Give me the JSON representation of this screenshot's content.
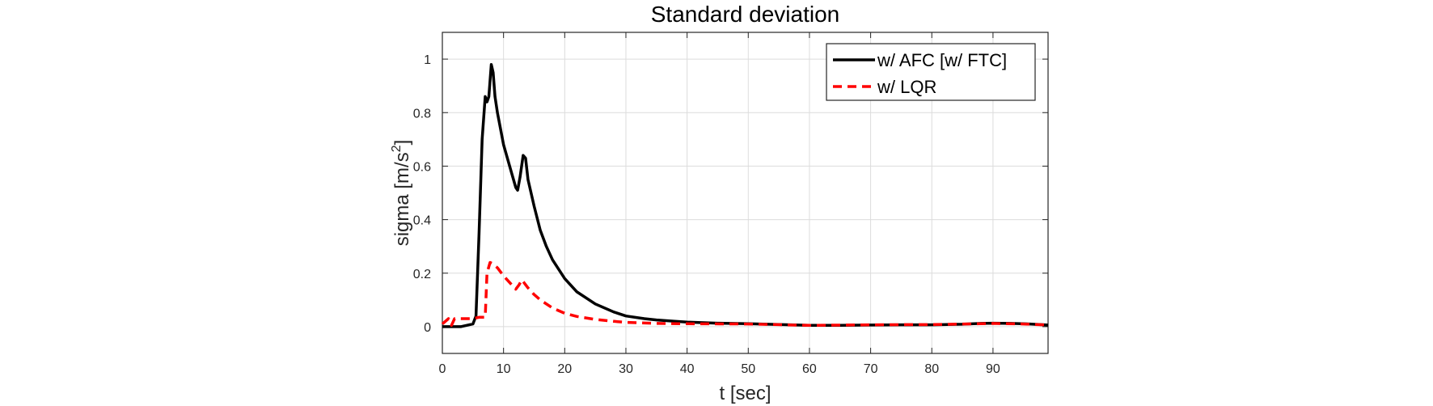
{
  "chart_data": {
    "type": "line",
    "title": "Standard deviation",
    "xlabel": "t [sec]",
    "ylabel_main": "sigma [m/s",
    "ylabel_sup": "2",
    "ylabel_close": "]",
    "xlim": [
      0,
      99
    ],
    "ylim": [
      -0.1,
      1.1
    ],
    "xticks": [
      0,
      10,
      20,
      30,
      40,
      50,
      60,
      70,
      80,
      90
    ],
    "yticks": [
      0,
      0.2,
      0.4,
      0.6,
      0.8,
      1
    ],
    "xtick_labels": [
      "0",
      "10",
      "20",
      "30",
      "40",
      "50",
      "60",
      "70",
      "80",
      "90"
    ],
    "ytick_labels": [
      "0",
      "0.2",
      "0.4",
      "0.6",
      "0.8",
      "1"
    ],
    "grid": true,
    "legend_position": "top-right",
    "series": [
      {
        "name": "w/ AFC [w/ FTC]",
        "color": "#000000",
        "style": "solid",
        "x": [
          0,
          3,
          5,
          5.5,
          6,
          6.5,
          7,
          7.3,
          7.6,
          8,
          8.3,
          8.6,
          9,
          10,
          11,
          12,
          12.3,
          12.7,
          13.2,
          13.6,
          14,
          15,
          16,
          17,
          18,
          20,
          22,
          25,
          28,
          30,
          33,
          35,
          38,
          40,
          45,
          50,
          55,
          60,
          65,
          70,
          75,
          80,
          85,
          88,
          90,
          93,
          96,
          99
        ],
        "y": [
          0,
          0,
          0.01,
          0.04,
          0.35,
          0.7,
          0.86,
          0.84,
          0.86,
          0.98,
          0.95,
          0.86,
          0.8,
          0.68,
          0.6,
          0.52,
          0.51,
          0.56,
          0.64,
          0.63,
          0.55,
          0.45,
          0.36,
          0.3,
          0.25,
          0.18,
          0.13,
          0.085,
          0.055,
          0.04,
          0.03,
          0.025,
          0.02,
          0.017,
          0.013,
          0.011,
          0.008,
          0.005,
          0.005,
          0.006,
          0.007,
          0.007,
          0.009,
          0.012,
          0.013,
          0.012,
          0.01,
          0.006
        ]
      },
      {
        "name": "w/ LQR",
        "color": "#ff0000",
        "style": "dashed",
        "x": [
          0,
          1,
          1.5,
          2,
          3,
          5,
          6,
          7,
          7.3,
          7.8,
          8.3,
          9,
          10,
          11,
          12,
          12.5,
          13,
          13.5,
          14,
          15,
          16,
          18,
          20,
          22,
          25,
          28,
          30,
          35,
          40,
          50,
          60,
          70,
          80,
          88,
          90,
          95,
          99
        ],
        "y": [
          0.01,
          0.03,
          0.005,
          0.03,
          0.03,
          0.03,
          0.035,
          0.035,
          0.2,
          0.24,
          0.235,
          0.22,
          0.19,
          0.165,
          0.14,
          0.155,
          0.175,
          0.16,
          0.145,
          0.12,
          0.1,
          0.07,
          0.05,
          0.038,
          0.027,
          0.02,
          0.016,
          0.012,
          0.011,
          0.01,
          0.005,
          0.007,
          0.008,
          0.011,
          0.012,
          0.01,
          0.006
        ]
      }
    ]
  }
}
